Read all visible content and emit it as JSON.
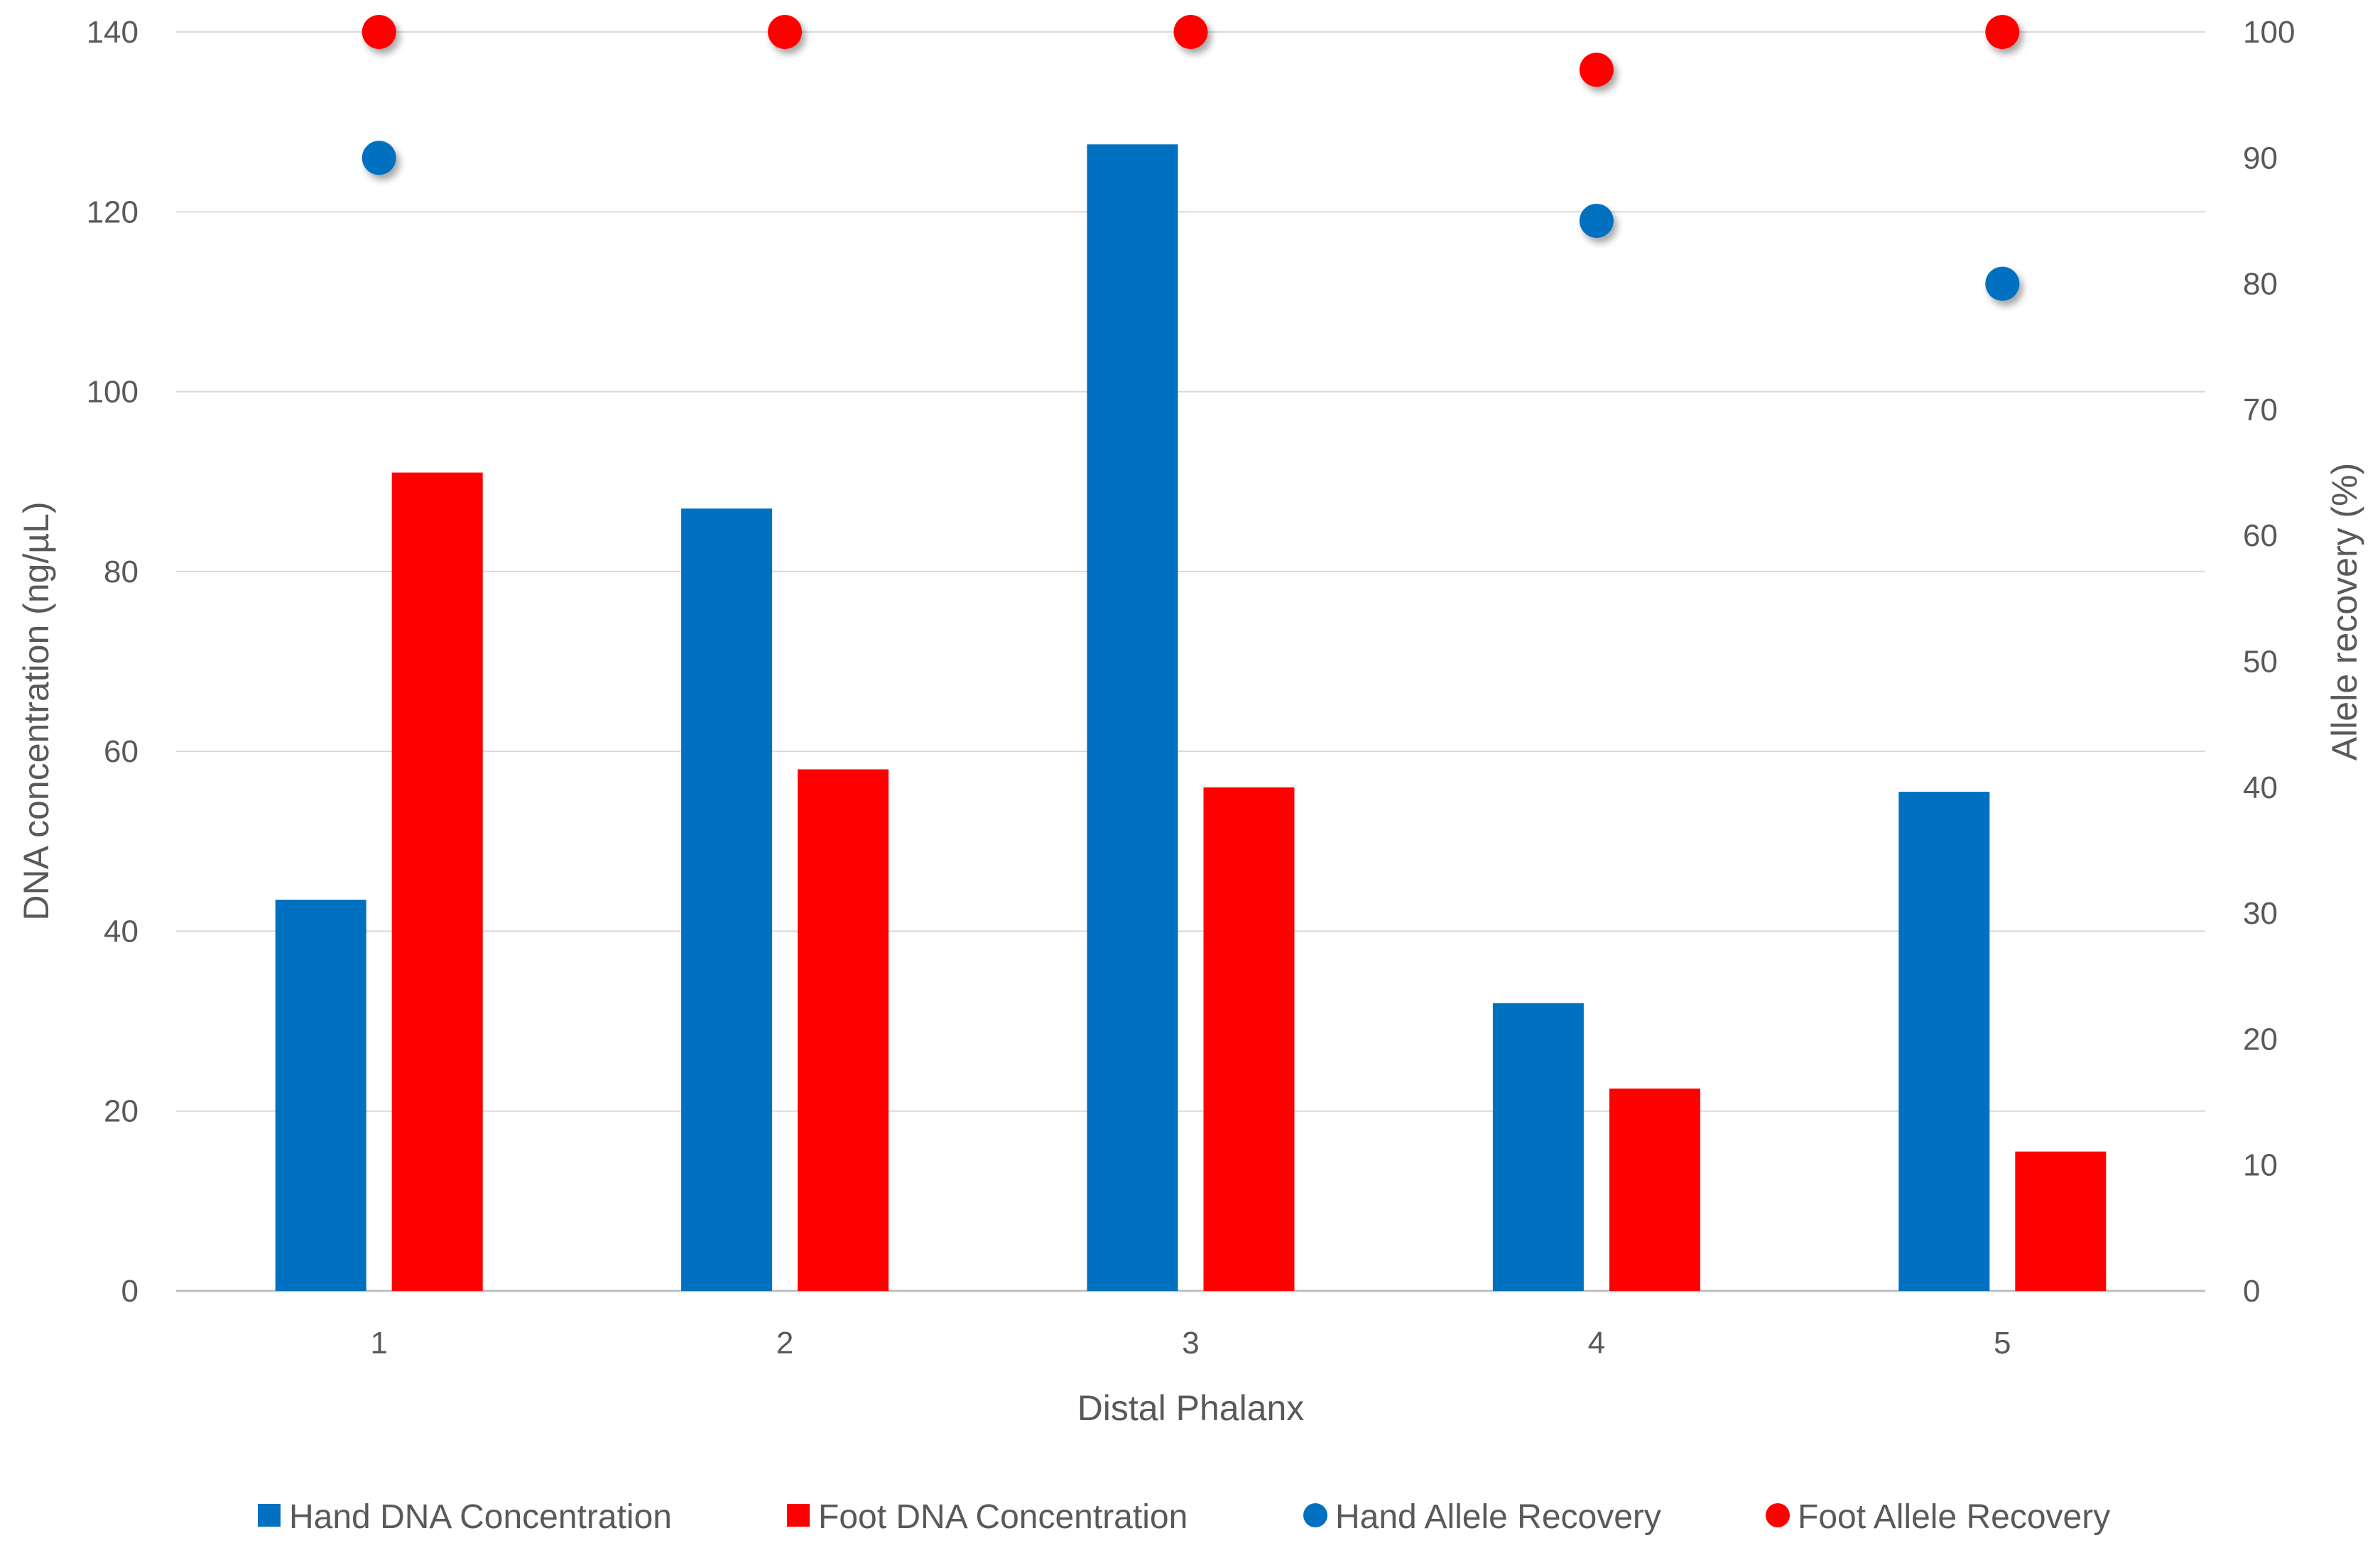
{
  "chart_data": {
    "type": "bar",
    "title": "",
    "categories": [
      "1",
      "2",
      "3",
      "4",
      "5"
    ],
    "xlabel": "Distal Phalanx",
    "ylabel": "DNA concentration (ng/µL)",
    "y2label": "Allele recovery (%)",
    "ylim": [
      0,
      140
    ],
    "y2lim": [
      0,
      100
    ],
    "yticks": [
      "0",
      "20",
      "40",
      "60",
      "80",
      "100",
      "120",
      "140"
    ],
    "y2ticks": [
      "0",
      "10",
      "20",
      "30",
      "40",
      "50",
      "60",
      "70",
      "80",
      "90",
      "100"
    ],
    "grid": true,
    "legend_position": "bottom",
    "series": [
      {
        "name": "Hand DNA Concentration",
        "kind": "bar",
        "axis": "left",
        "color": "#0070C0",
        "values": [
          43.5,
          87,
          127.5,
          32,
          55.5
        ]
      },
      {
        "name": "Foot DNA Concentration",
        "kind": "bar",
        "axis": "left",
        "color": "#FF0000",
        "values": [
          91,
          58,
          56,
          22.5,
          15.5
        ]
      },
      {
        "name": "Hand Allele Recovery",
        "kind": "scatter",
        "axis": "right",
        "color": "#0070C0",
        "values": [
          90,
          null,
          null,
          85,
          80
        ]
      },
      {
        "name": "Foot Allele Recovery",
        "kind": "scatter",
        "axis": "right",
        "color": "#FF0000",
        "values": [
          100,
          100,
          100,
          97,
          100
        ]
      }
    ]
  }
}
